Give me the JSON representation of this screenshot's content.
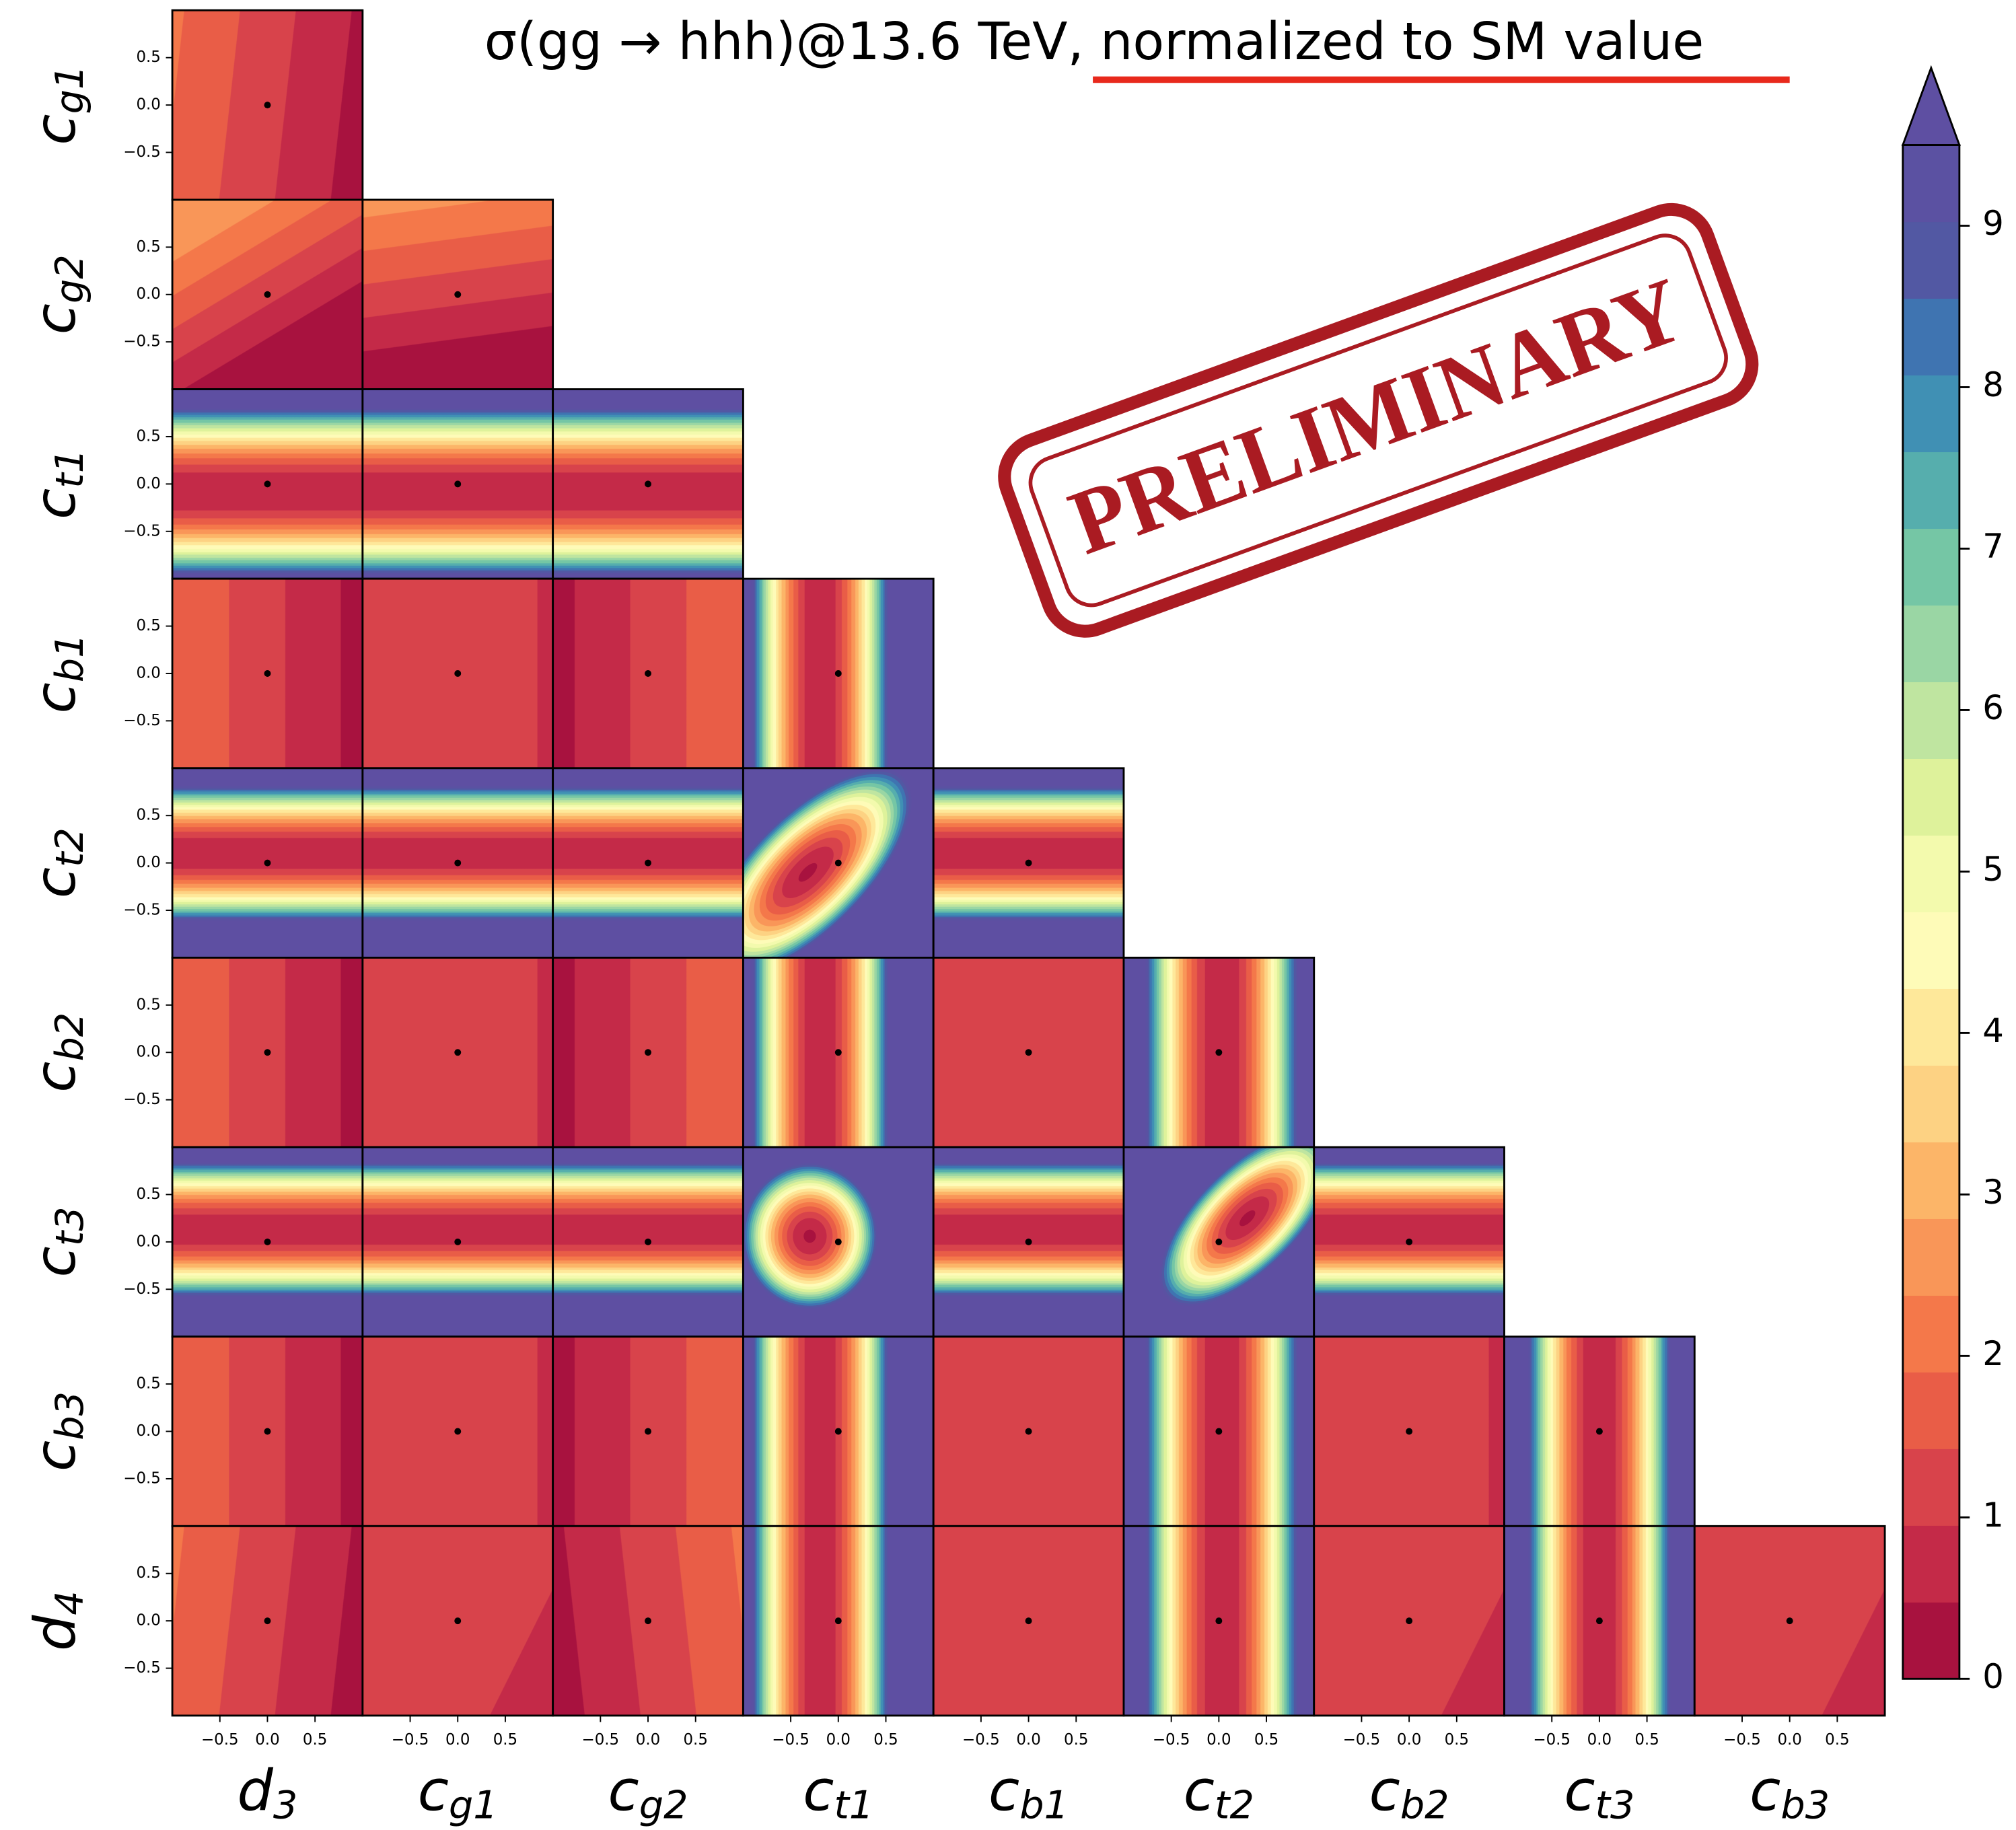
{
  "chart_data": {
    "type": "corner",
    "title": "σ(gg → hhh)@13.6 TeV, normalized to SM value",
    "annotation": "PRELIMINARY",
    "parameters": [
      {
        "symbol": "d",
        "subscript": "3"
      },
      {
        "symbol": "c",
        "subscript": "g1"
      },
      {
        "symbol": "c",
        "subscript": "g2"
      },
      {
        "symbol": "c",
        "subscript": "t1"
      },
      {
        "symbol": "c",
        "subscript": "b1"
      },
      {
        "symbol": "c",
        "subscript": "t2"
      },
      {
        "symbol": "c",
        "subscript": "b2"
      },
      {
        "symbol": "c",
        "subscript": "t3"
      },
      {
        "symbol": "c",
        "subscript": "b3"
      },
      {
        "symbol": "d",
        "subscript": "4"
      }
    ],
    "xlim": [
      -1,
      1
    ],
    "ylim": [
      -1,
      1
    ],
    "xticks": [
      {
        "value": -0.5,
        "label": "−0.5"
      },
      {
        "value": 0,
        "label": "0.0"
      },
      {
        "value": 0.5,
        "label": "0.5"
      }
    ],
    "yticks": [
      {
        "value": -0.5,
        "label": "−0.5"
      },
      {
        "value": 0,
        "label": "0.0"
      },
      {
        "value": 0.5,
        "label": "0.5"
      }
    ],
    "sm_point": {
      "x": 0,
      "y": 0
    },
    "colorbar": {
      "lim": [
        0,
        9.5
      ],
      "ticks": [
        0,
        1,
        2,
        3,
        4,
        5,
        6,
        7,
        8,
        9
      ],
      "colors": [
        "#a8123f",
        "#c42a48",
        "#d8434b",
        "#e95d47",
        "#f4784a",
        "#f99658",
        "#fcb568",
        "#fdd283",
        "#fee89a",
        "#fefbb8",
        "#f3faad",
        "#def29b",
        "#bfe5a0",
        "#9ad6a4",
        "#75c6a5",
        "#56aead",
        "#4090b4",
        "#3f74b1",
        "#5258a3",
        "#5b51a2"
      ],
      "extend_color": "#5e4fa2"
    }
  }
}
